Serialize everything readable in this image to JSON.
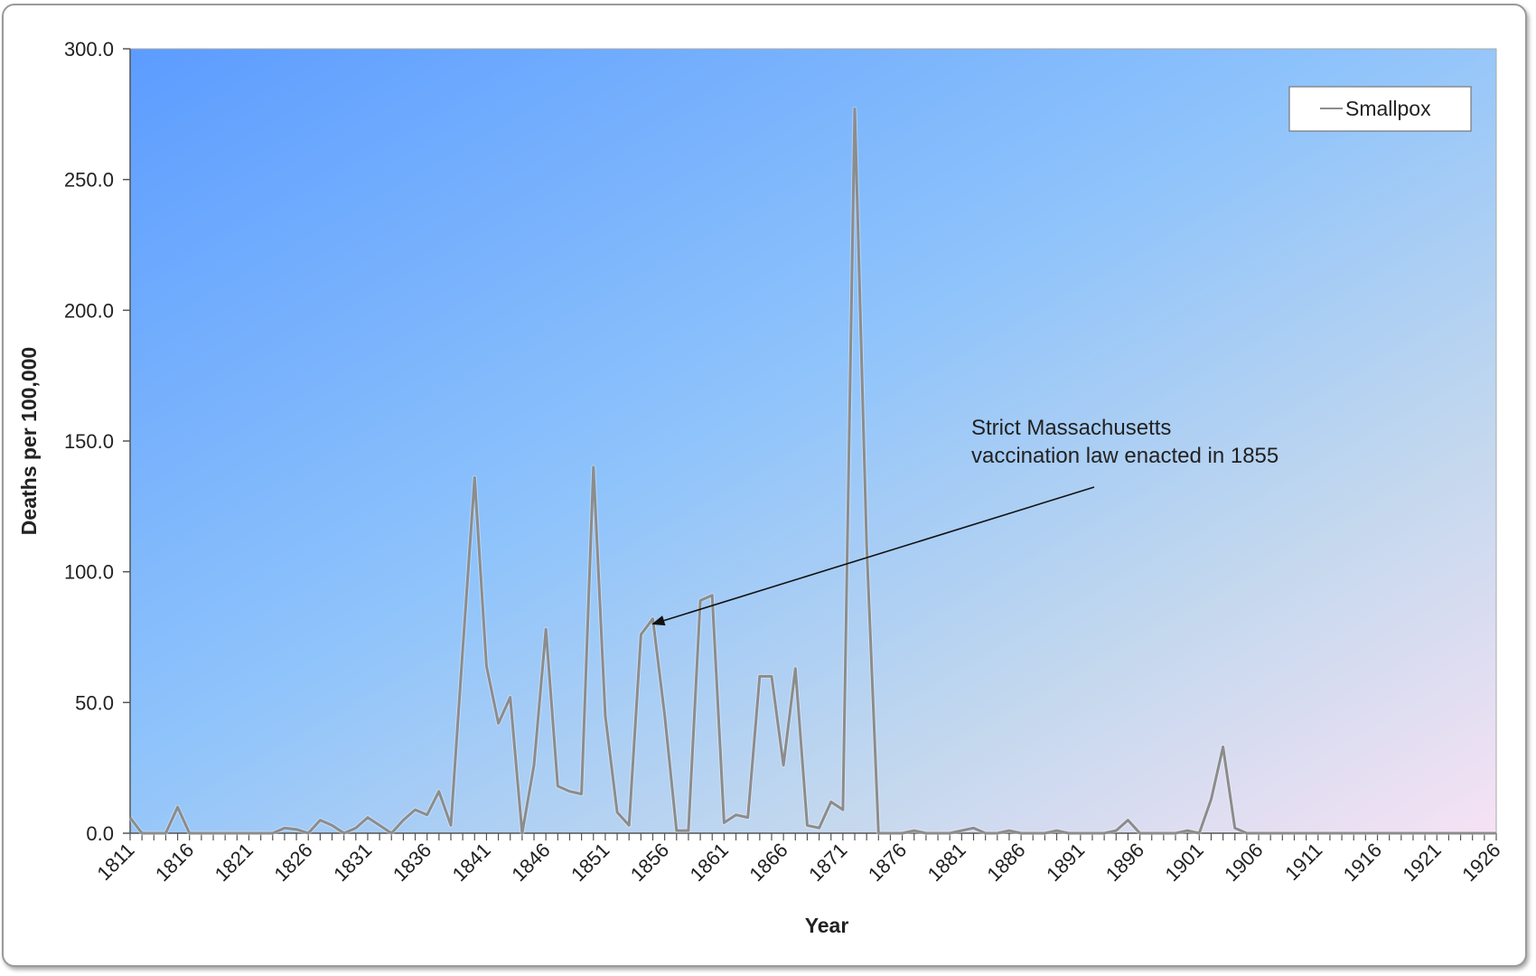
{
  "chart_data": {
    "type": "line",
    "title": "",
    "xlabel": "Year",
    "ylabel": "Deaths per 100,000",
    "ylim": [
      0,
      300
    ],
    "yticks": [
      "0.0",
      "50.0",
      "100.0",
      "150.0",
      "200.0",
      "250.0",
      "300.0"
    ],
    "xlim": [
      1811,
      1926
    ],
    "xticks": [
      "1811",
      "1816",
      "1821",
      "1826",
      "1831",
      "1836",
      "1841",
      "1846",
      "1851",
      "1856",
      "1861",
      "1866",
      "1871",
      "1876",
      "1881",
      "1886",
      "1891",
      "1896",
      "1901",
      "1906",
      "1911",
      "1916",
      "1921",
      "1926"
    ],
    "grid": false,
    "legend": {
      "placement": "top-right",
      "entries": [
        "Smallpox"
      ]
    },
    "series": [
      {
        "name": "Smallpox",
        "color": "#8c8c8c",
        "x": [
          1811,
          1812,
          1813,
          1814,
          1815,
          1816,
          1817,
          1818,
          1819,
          1820,
          1821,
          1822,
          1823,
          1824,
          1825,
          1826,
          1827,
          1828,
          1829,
          1830,
          1831,
          1832,
          1833,
          1834,
          1835,
          1836,
          1837,
          1838,
          1839,
          1840,
          1841,
          1842,
          1843,
          1844,
          1845,
          1846,
          1847,
          1848,
          1849,
          1850,
          1851,
          1852,
          1853,
          1854,
          1855,
          1856,
          1857,
          1858,
          1859,
          1860,
          1861,
          1862,
          1863,
          1864,
          1865,
          1866,
          1867,
          1868,
          1869,
          1870,
          1871,
          1872,
          1873,
          1874,
          1875,
          1876,
          1877,
          1878,
          1879,
          1880,
          1881,
          1882,
          1883,
          1884,
          1885,
          1886,
          1887,
          1888,
          1889,
          1890,
          1891,
          1892,
          1893,
          1894,
          1895,
          1896,
          1897,
          1898,
          1899,
          1900,
          1901,
          1902,
          1903,
          1904,
          1905,
          1906,
          1907,
          1908,
          1909,
          1910,
          1911,
          1912,
          1913,
          1914,
          1915,
          1916,
          1917,
          1918,
          1919,
          1920,
          1921,
          1922,
          1923,
          1924,
          1925,
          1926
        ],
        "values": [
          6,
          0,
          0,
          0,
          10,
          0,
          0,
          0,
          0,
          0,
          0,
          0,
          0,
          2,
          1.5,
          0,
          5,
          3,
          0,
          2,
          6,
          3,
          0,
          5,
          9,
          7,
          16,
          3,
          70,
          136,
          64,
          42,
          52,
          0,
          26,
          78,
          18,
          16,
          15,
          140,
          45,
          8,
          3,
          76,
          82,
          45,
          1,
          1,
          89,
          91,
          4,
          7,
          6,
          60,
          60,
          26,
          63,
          3,
          2,
          12,
          9,
          277,
          110,
          0,
          0,
          0,
          1,
          0,
          0,
          0,
          1,
          2,
          0,
          0,
          1,
          0,
          0,
          0,
          1,
          0,
          0,
          0,
          0,
          1,
          5,
          0,
          0,
          0,
          0,
          1,
          0,
          13,
          33,
          2,
          0,
          0,
          0,
          0,
          0,
          0,
          0,
          0,
          0,
          0,
          0,
          0,
          0,
          0,
          0,
          0,
          0,
          0,
          0,
          0,
          0,
          0
        ]
      }
    ],
    "annotations": [
      {
        "lines": [
          "Strict Massachusetts",
          "vaccination law enacted in 1855"
        ],
        "target_x": 1855,
        "target_y": 80
      }
    ]
  }
}
